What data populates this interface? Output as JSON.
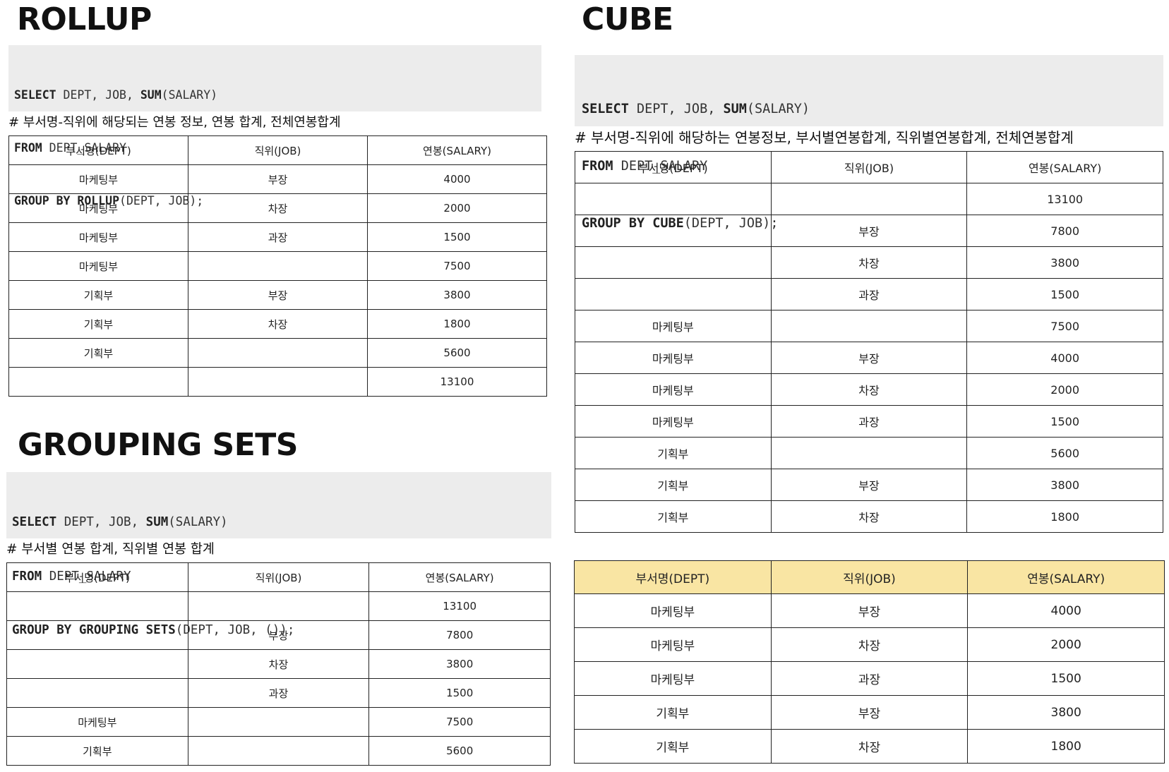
{
  "rollup": {
    "title": "ROLLUP",
    "code": [
      {
        "kw1": "SELECT",
        "rest1": " DEPT, JOB, ",
        "kw2": "SUM",
        "rest2": "(SALARY)"
      },
      {
        "kw1": "FROM",
        "rest1": " DEPT_SALARY",
        "kw2": "",
        "rest2": ""
      },
      {
        "kw1": "GROUP BY ROLLUP",
        "rest1": "(DEPT, JOB);",
        "kw2": "",
        "rest2": ""
      }
    ],
    "comment": "# 부서명-직위에 해당되는 연봉 정보, 연봉 합계, 전체연봉합계",
    "headers": [
      "부서명(DEPT)",
      "직위(JOB)",
      "연봉(SALARY)"
    ],
    "rows": [
      [
        "마케팅부",
        "부장",
        "4000"
      ],
      [
        "마케팅부",
        "차장",
        "2000"
      ],
      [
        "마케팅부",
        "과장",
        "1500"
      ],
      [
        "마케팅부",
        "",
        "7500"
      ],
      [
        "기획부",
        "부장",
        "3800"
      ],
      [
        "기획부",
        "차장",
        "1800"
      ],
      [
        "기획부",
        "",
        "5600"
      ],
      [
        "",
        "",
        "13100"
      ]
    ]
  },
  "grouping_sets": {
    "title": "GROUPING SETS",
    "code": [
      {
        "kw1": "SELECT",
        "rest1": " DEPT, JOB, ",
        "kw2": "SUM",
        "rest2": "(SALARY)"
      },
      {
        "kw1": "FROM",
        "rest1": " DEPT_SALARY",
        "kw2": "",
        "rest2": ""
      },
      {
        "kw1": "GROUP BY GROUPING SETS",
        "rest1": "(DEPT, JOB, ());",
        "kw2": "",
        "rest2": ""
      }
    ],
    "comment": "# 부서별 연봉 합계, 직위별 연봉 합계",
    "headers": [
      "부서명(DEPT)",
      "직위(JOB)",
      "연봉(SALARY)"
    ],
    "rows": [
      [
        "",
        "",
        "13100"
      ],
      [
        "",
        "부장",
        "7800"
      ],
      [
        "",
        "차장",
        "3800"
      ],
      [
        "",
        "과장",
        "1500"
      ],
      [
        "마케팅부",
        "",
        "7500"
      ],
      [
        "기획부",
        "",
        "5600"
      ]
    ]
  },
  "cube": {
    "title": "CUBE",
    "code": [
      {
        "kw1": "SELECT",
        "rest1": " DEPT, JOB, ",
        "kw2": "SUM",
        "rest2": "(SALARY)"
      },
      {
        "kw1": "FROM",
        "rest1": " DEPT_SALARY",
        "kw2": "",
        "rest2": ""
      },
      {
        "kw1": "GROUP BY CUBE",
        "rest1": "(DEPT, JOB);",
        "kw2": "",
        "rest2": ""
      }
    ],
    "comment": "# 부서명-직위에 해당하는 연봉정보, 부서별연봉합계, 직위별연봉합계, 전체연봉합계",
    "headers": [
      "부서명(DEPT)",
      "직위(JOB)",
      "연봉(SALARY)"
    ],
    "rows": [
      [
        "",
        "",
        "13100"
      ],
      [
        "",
        "부장",
        "7800"
      ],
      [
        "",
        "차장",
        "3800"
      ],
      [
        "",
        "과장",
        "1500"
      ],
      [
        "마케팅부",
        "",
        "7500"
      ],
      [
        "마케팅부",
        "부장",
        "4000"
      ],
      [
        "마케팅부",
        "차장",
        "2000"
      ],
      [
        "마케팅부",
        "과장",
        "1500"
      ],
      [
        "기획부",
        "",
        "5600"
      ],
      [
        "기획부",
        "부장",
        "3800"
      ],
      [
        "기획부",
        "차장",
        "1800"
      ]
    ]
  },
  "result": {
    "headers": [
      "부서명(DEPT)",
      "직위(JOB)",
      "연봉(SALARY)"
    ],
    "rows": [
      [
        "마케팅부",
        "부장",
        "4000"
      ],
      [
        "마케팅부",
        "차장",
        "2000"
      ],
      [
        "마케팅부",
        "과장",
        "1500"
      ],
      [
        "기획부",
        "부장",
        "3800"
      ],
      [
        "기획부",
        "차장",
        "1800"
      ]
    ],
    "header_color": "#f9e5a3"
  }
}
